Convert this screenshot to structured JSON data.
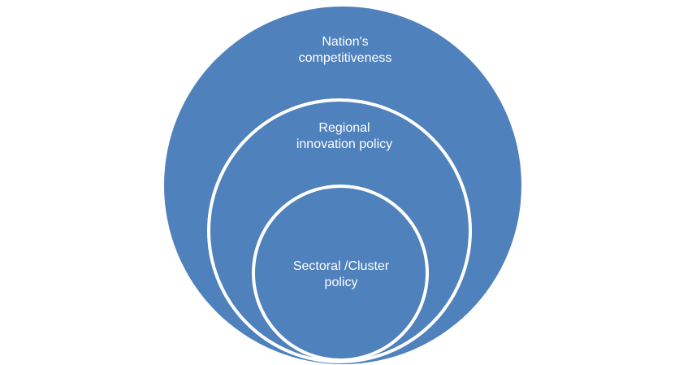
{
  "diagram": {
    "type": "nested-circles",
    "fill_color": "#4f81bd",
    "border_color": "#ffffff",
    "text_color": "#ffffff",
    "levels": [
      {
        "line1": "Nation's",
        "line2": "competitiveness"
      },
      {
        "line1": "Regional",
        "line2": "innovation policy"
      },
      {
        "line1": "Sectoral /Cluster",
        "line2": "policy"
      }
    ]
  }
}
